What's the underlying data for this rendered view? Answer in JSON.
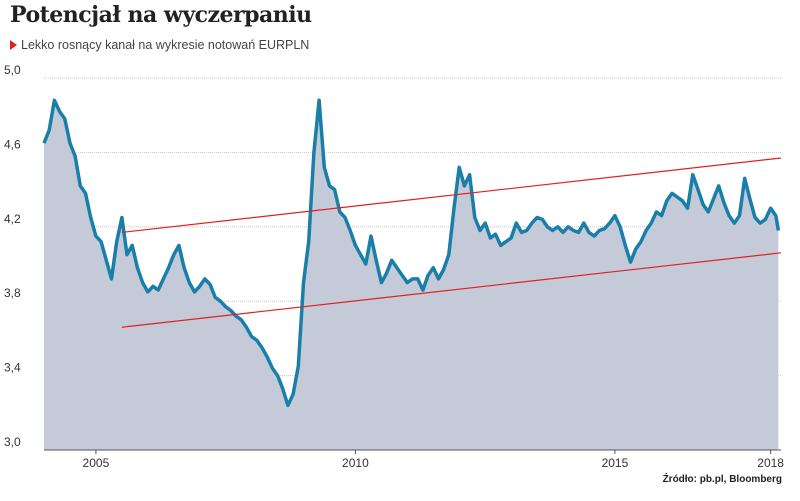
{
  "header": {
    "title": "Potencjał na wyczerpaniu",
    "subtitle": "Lekko rosnący kanał na wykresie notowań EURPLN"
  },
  "footer": {
    "source": "Źródło: pb.pl, Bloomberg"
  },
  "colors": {
    "line": "#1a7fa8",
    "area": "#c5cad9",
    "channel": "#e02020",
    "grid": "#bbbbbb",
    "marker": "#e02020"
  },
  "chart_data": {
    "type": "area",
    "title": "Potencjał na wyczerpaniu",
    "subtitle": "Lekko rosnący kanał na wykresie notowań EURPLN",
    "xlabel": "",
    "ylabel": "",
    "xlim": [
      2004.0,
      2018.2
    ],
    "ylim": [
      3.0,
      5.0
    ],
    "yticks": [
      3.0,
      3.4,
      3.8,
      4.2,
      4.6,
      5.0
    ],
    "ytick_labels": [
      "3,0",
      "3,4",
      "3,8",
      "4,2",
      "4,6",
      "5,0"
    ],
    "xticks": [
      2005,
      2010,
      2015,
      2018
    ],
    "xtick_labels": [
      "2005",
      "2010",
      "2015",
      "2018"
    ],
    "grid": true,
    "series": [
      {
        "x": [
          2004.0,
          2004.1,
          2004.2,
          2004.3,
          2004.4,
          2004.5,
          2004.6,
          2004.7,
          2004.8,
          2004.9,
          2005.0,
          2005.1,
          2005.2,
          2005.3,
          2005.4,
          2005.5,
          2005.6,
          2005.7,
          2005.8,
          2005.9,
          2006.0,
          2006.1,
          2006.2,
          2006.3,
          2006.4,
          2006.5,
          2006.6,
          2006.7,
          2006.8,
          2006.9,
          2007.0,
          2007.1,
          2007.2,
          2007.3,
          2007.4,
          2007.5,
          2007.6,
          2007.7,
          2007.8,
          2007.9,
          2008.0,
          2008.1,
          2008.2,
          2008.3,
          2008.4,
          2008.5,
          2008.6,
          2008.7,
          2008.8,
          2008.9,
          2009.0,
          2009.1,
          2009.2,
          2009.3,
          2009.4,
          2009.5,
          2009.6,
          2009.7,
          2009.8,
          2009.9,
          2010.0,
          2010.1,
          2010.2,
          2010.3,
          2010.4,
          2010.5,
          2010.6,
          2010.7,
          2010.8,
          2010.9,
          2011.0,
          2011.1,
          2011.2,
          2011.3,
          2011.4,
          2011.5,
          2011.6,
          2011.7,
          2011.8,
          2011.9,
          2012.0,
          2012.1,
          2012.2,
          2012.3,
          2012.4,
          2012.5,
          2012.6,
          2012.7,
          2012.8,
          2012.9,
          2013.0,
          2013.1,
          2013.2,
          2013.3,
          2013.4,
          2013.5,
          2013.6,
          2013.7,
          2013.8,
          2013.9,
          2014.0,
          2014.1,
          2014.2,
          2014.3,
          2014.4,
          2014.5,
          2014.6,
          2014.7,
          2014.8,
          2014.9,
          2015.0,
          2015.1,
          2015.2,
          2015.3,
          2015.4,
          2015.5,
          2015.6,
          2015.7,
          2015.8,
          2015.9,
          2016.0,
          2016.1,
          2016.2,
          2016.3,
          2016.4,
          2016.5,
          2016.6,
          2016.7,
          2016.8,
          2016.9,
          2017.0,
          2017.1,
          2017.2,
          2017.3,
          2017.4,
          2017.5,
          2017.6,
          2017.7,
          2017.8,
          2017.9,
          2018.0,
          2018.1,
          2018.15
        ],
        "values": [
          4.65,
          4.72,
          4.88,
          4.82,
          4.78,
          4.65,
          4.58,
          4.42,
          4.38,
          4.25,
          4.15,
          4.12,
          4.02,
          3.92,
          4.12,
          4.25,
          4.05,
          4.1,
          3.98,
          3.9,
          3.85,
          3.88,
          3.86,
          3.92,
          3.98,
          4.05,
          4.1,
          3.98,
          3.9,
          3.85,
          3.88,
          3.92,
          3.89,
          3.82,
          3.8,
          3.77,
          3.75,
          3.72,
          3.7,
          3.66,
          3.61,
          3.59,
          3.55,
          3.5,
          3.44,
          3.4,
          3.33,
          3.24,
          3.3,
          3.45,
          3.9,
          4.12,
          4.6,
          4.88,
          4.52,
          4.42,
          4.4,
          4.28,
          4.25,
          4.18,
          4.1,
          4.05,
          4.0,
          4.15,
          4.02,
          3.9,
          3.95,
          4.02,
          3.98,
          3.94,
          3.9,
          3.92,
          3.92,
          3.86,
          3.94,
          3.98,
          3.92,
          3.97,
          4.05,
          4.3,
          4.52,
          4.42,
          4.48,
          4.25,
          4.18,
          4.22,
          4.14,
          4.16,
          4.1,
          4.12,
          4.14,
          4.22,
          4.17,
          4.18,
          4.22,
          4.25,
          4.24,
          4.2,
          4.18,
          4.2,
          4.17,
          4.2,
          4.18,
          4.17,
          4.22,
          4.17,
          4.15,
          4.18,
          4.19,
          4.22,
          4.26,
          4.2,
          4.1,
          4.01,
          4.08,
          4.12,
          4.18,
          4.22,
          4.28,
          4.26,
          4.34,
          4.38,
          4.36,
          4.34,
          4.3,
          4.48,
          4.4,
          4.32,
          4.28,
          4.35,
          4.42,
          4.33,
          4.26,
          4.22,
          4.26,
          4.46,
          4.35,
          4.25,
          4.22,
          4.24,
          4.3,
          4.26,
          4.18
        ]
      }
    ],
    "annotations": [
      {
        "type": "channel-line",
        "x": [
          2005.5,
          2018.2
        ],
        "values": [
          4.17,
          4.57
        ]
      },
      {
        "type": "channel-line",
        "x": [
          2005.5,
          2018.2
        ],
        "values": [
          3.66,
          4.06
        ]
      }
    ]
  }
}
